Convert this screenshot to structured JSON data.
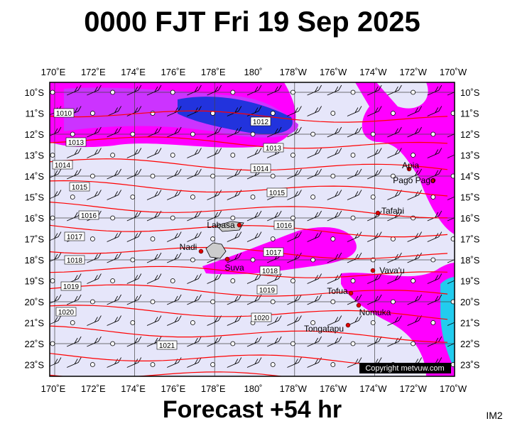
{
  "header": {
    "title": "0000 FJT Fri 19 Sep 2025"
  },
  "footer": {
    "forecast": "Forecast +54 hr",
    "code": "IM2",
    "copyright": "Copyright metvuw.com"
  },
  "lon_labels": [
    "170˚E",
    "172˚E",
    "174˚E",
    "176˚E",
    "178˚E",
    "180˚",
    "178˚W",
    "176˚W",
    "174˚W",
    "172˚W",
    "170˚W"
  ],
  "lat_labels": [
    "10˚S",
    "11˚S",
    "12˚S",
    "13˚S",
    "14˚S",
    "15˚S",
    "16˚S",
    "17˚S",
    "18˚S",
    "19˚S",
    "20˚S",
    "21˚S",
    "22˚S",
    "23˚S"
  ],
  "isobar_labels": [
    1010,
    1012,
    1013,
    1013,
    1014,
    1014,
    1015,
    1015,
    1016,
    1016,
    1017,
    1017,
    1018,
    1018,
    1019,
    1019,
    1020,
    1020,
    1021
  ],
  "places": [
    "Apia",
    "Pago Pago",
    "Tafahi",
    "Labasa",
    "Nadi",
    "Suva",
    "Vava'u",
    "Tofua",
    "Nomuka",
    "Tongatapu"
  ]
}
